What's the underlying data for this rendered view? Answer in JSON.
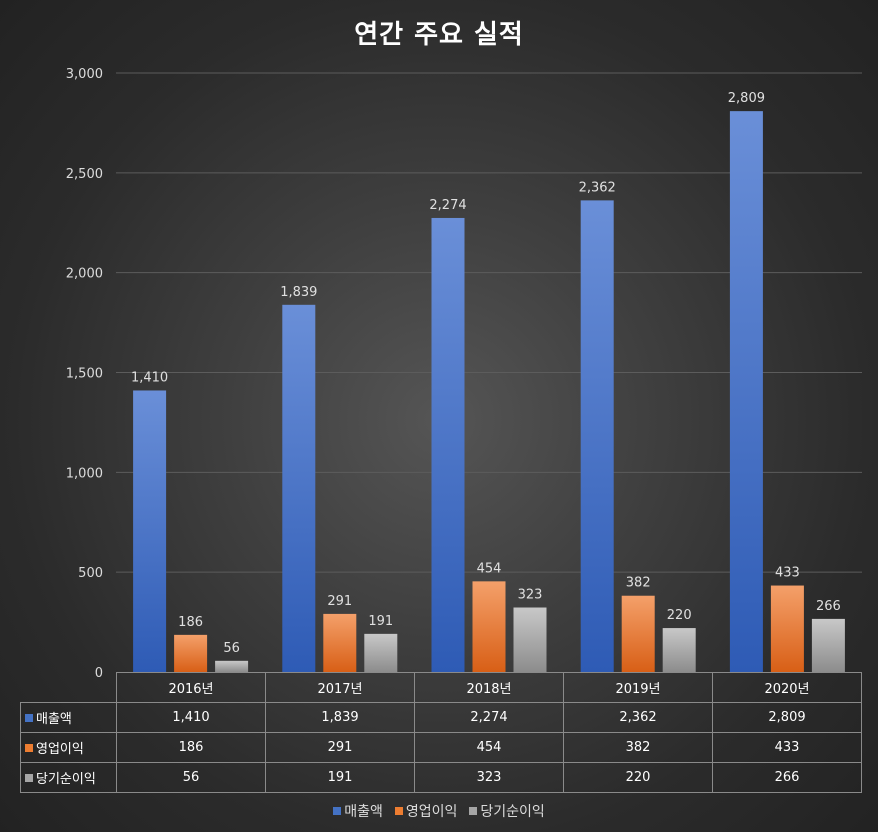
{
  "chart_data": {
    "type": "bar",
    "title": "연간 주요 실적",
    "categories": [
      "2016년",
      "2017년",
      "2018년",
      "2019년",
      "2020년"
    ],
    "series": [
      {
        "name": "매출액",
        "values": [
          1410,
          1839,
          2274,
          2362,
          2809
        ],
        "labels": [
          "1,410",
          "1,839",
          "2,274",
          "2,362",
          "2,809"
        ],
        "color": "#4472c4"
      },
      {
        "name": "영업이익",
        "values": [
          186,
          291,
          454,
          382,
          433
        ],
        "labels": [
          "186",
          "291",
          "454",
          "382",
          "433"
        ],
        "color": "#ed7d31"
      },
      {
        "name": "당기순이익",
        "values": [
          56,
          191,
          323,
          220,
          266
        ],
        "labels": [
          "56",
          "191",
          "323",
          "220",
          "266"
        ],
        "color": "#a5a5a5"
      }
    ],
    "yticks": [
      "0",
      "500",
      "1,000",
      "1,500",
      "2,000",
      "2,500",
      "3,000"
    ],
    "ylim": [
      0,
      3000
    ],
    "xlabel": "",
    "ylabel": "",
    "grid": true,
    "legend_position": "bottom",
    "data_table": true
  }
}
